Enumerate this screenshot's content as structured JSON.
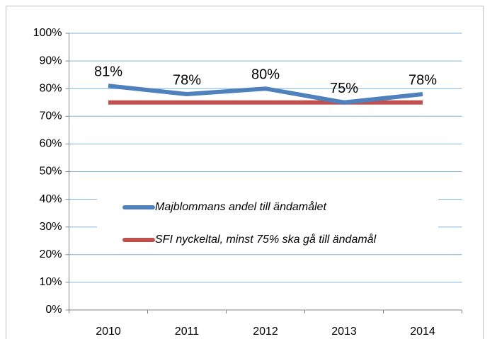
{
  "chart_data": {
    "type": "line",
    "categories": [
      "2010",
      "2011",
      "2012",
      "2013",
      "2014"
    ],
    "series": [
      {
        "name": "Majblommans andel till ändamålet",
        "color": "#4f81bd",
        "values": [
          81,
          78,
          80,
          75,
          78
        ],
        "value_labels": [
          "81%",
          "78%",
          "80%",
          "75%",
          "78%"
        ]
      },
      {
        "name": "SFI nyckeltal, minst 75% ska gå till ändamål",
        "color": "#c0504d",
        "values": [
          75,
          75,
          75,
          75,
          75
        ]
      }
    ],
    "ylim": [
      0,
      100
    ],
    "yticks": [
      {
        "value": 0,
        "label": "0%"
      },
      {
        "value": 10,
        "label": "10%"
      },
      {
        "value": 20,
        "label": "20%"
      },
      {
        "value": 30,
        "label": "30%"
      },
      {
        "value": 40,
        "label": "40%"
      },
      {
        "value": 50,
        "label": "50%"
      },
      {
        "value": 60,
        "label": "60%"
      },
      {
        "value": 70,
        "label": "70%"
      },
      {
        "value": 80,
        "label": "80%"
      },
      {
        "value": 90,
        "label": "90%"
      },
      {
        "value": 100,
        "label": "100%"
      }
    ],
    "grid": true
  }
}
